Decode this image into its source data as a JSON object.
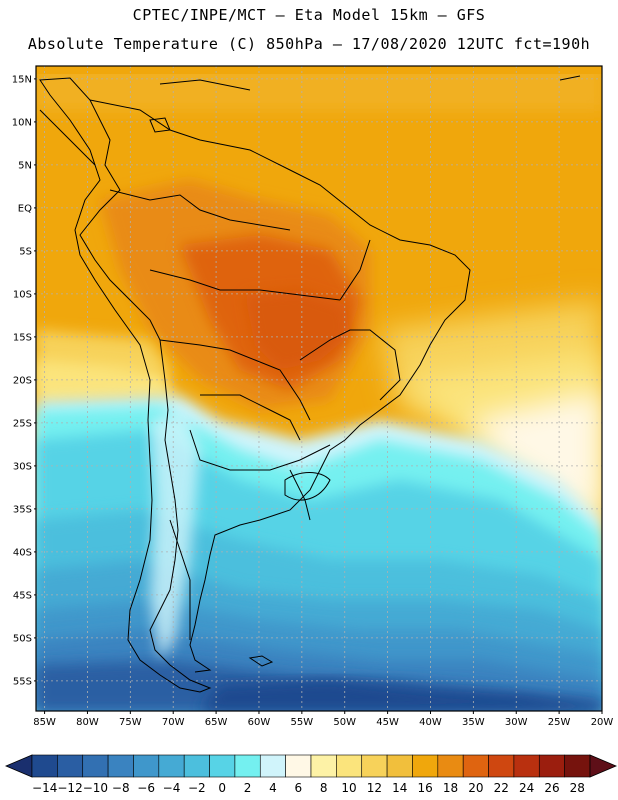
{
  "header": {
    "line1": "CPTEC/INPE/MCT –  Eta Model 15km – GFS",
    "line2": "Absolute Temperature (C) 850hPa – 17/08/2020 12UTC fct=190h"
  },
  "map": {
    "lat_labels": [
      "15N",
      "10N",
      "5N",
      "EQ",
      "5S",
      "10S",
      "15S",
      "20S",
      "25S",
      "30S",
      "35S",
      "40S",
      "45S",
      "50S",
      "55S"
    ],
    "lon_labels": [
      "85W",
      "80W",
      "75W",
      "70W",
      "65W",
      "60W",
      "55W",
      "50W",
      "45W",
      "40W",
      "35W",
      "30W",
      "25W",
      "20W"
    ],
    "land_outline_color": "#000000",
    "grid_color": "#b0b0b0"
  },
  "colorbar": {
    "labels": [
      "-14",
      "-12",
      "-10",
      "-8",
      "-6",
      "-4",
      "-2",
      "0",
      "2",
      "4",
      "6",
      "8",
      "10",
      "12",
      "14",
      "16",
      "18",
      "20",
      "22",
      "24",
      "26",
      "28"
    ],
    "colors": [
      "#1f4a8f",
      "#2a5ea3",
      "#3270b2",
      "#3a83c0",
      "#3f97cb",
      "#45aad4",
      "#4cbfdd",
      "#57d3e6",
      "#74f0f0",
      "#d0f4fb",
      "#fff8e6",
      "#fdf2a6",
      "#fbe47c",
      "#f7d25a",
      "#f1bf3c",
      "#f0a70c",
      "#e98b12",
      "#df6410",
      "#cf4710",
      "#b9300f",
      "#9b1e0e",
      "#76130d"
    ],
    "under_color": "#1a2f6e",
    "over_color": "#5e0f18"
  }
}
